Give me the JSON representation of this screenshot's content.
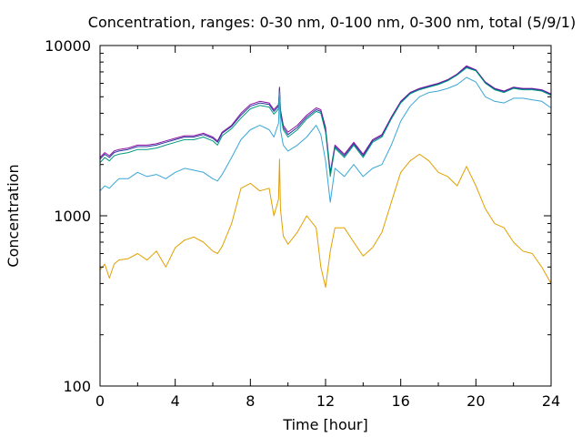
{
  "chart_data": {
    "type": "line",
    "title": "Concentration, ranges: 0-30 nm, 0-100 nm, 0-300 nm, total (5/9/1)",
    "xlabel": "Time [hour]",
    "ylabel": "Concentration",
    "xlim": [
      0,
      24
    ],
    "ylim": [
      100,
      10000
    ],
    "yscale": "log",
    "xticks": [
      0,
      4,
      8,
      12,
      16,
      20,
      24
    ],
    "xtick_labels": [
      "0",
      "4",
      "8",
      "12",
      "16",
      "20",
      "24"
    ],
    "yticks": [
      100,
      1000,
      10000
    ],
    "ytick_labels": [
      "100",
      "1000",
      "10000"
    ],
    "grid": false,
    "x": [
      0,
      0.25,
      0.5,
      0.75,
      1,
      1.5,
      2,
      2.5,
      3,
      3.5,
      4,
      4.5,
      5,
      5.5,
      6,
      6.25,
      6.5,
      7,
      7.5,
      8,
      8.5,
      9,
      9.25,
      9.5,
      9.55,
      9.6,
      9.75,
      10,
      10.5,
      11,
      11.5,
      11.75,
      12,
      12.25,
      12.5,
      13,
      13.5,
      14,
      14.5,
      15,
      15.5,
      16,
      16.5,
      17,
      17.5,
      18,
      18.5,
      19,
      19.5,
      20,
      20.5,
      21,
      21.5,
      22,
      22.5,
      23,
      23.5,
      24
    ],
    "series": [
      {
        "color": "#8c0fa0",
        "values": [
          2200,
          2350,
          2250,
          2400,
          2450,
          2500,
          2600,
          2600,
          2650,
          2750,
          2850,
          2950,
          2950,
          3050,
          2900,
          2750,
          3100,
          3400,
          4000,
          4500,
          4700,
          4600,
          4200,
          4500,
          5700,
          4200,
          3400,
          3100,
          3400,
          3900,
          4300,
          4200,
          3300,
          1800,
          2600,
          2300,
          2700,
          2300,
          2800,
          3000,
          3800,
          4700,
          5300,
          5600,
          5800,
          6000,
          6300,
          6800,
          7600,
          7200,
          6100,
          5600,
          5400,
          5700,
          5600,
          5600,
          5500,
          5200
        ]
      },
      {
        "color": "#2838a0",
        "values": [
          2150,
          2300,
          2200,
          2350,
          2400,
          2450,
          2550,
          2550,
          2600,
          2700,
          2800,
          2900,
          2900,
          3000,
          2850,
          2700,
          3050,
          3350,
          3900,
          4400,
          4600,
          4500,
          4100,
          4400,
          5600,
          4100,
          3300,
          3000,
          3300,
          3800,
          4200,
          4100,
          3200,
          1750,
          2550,
          2250,
          2650,
          2250,
          2750,
          2950,
          3750,
          4650,
          5250,
          5550,
          5750,
          5950,
          6250,
          6750,
          7500,
          7150,
          6050,
          5550,
          5350,
          5650,
          5550,
          5550,
          5450,
          5150
        ]
      },
      {
        "color": "#009a80",
        "values": [
          2050,
          2200,
          2100,
          2250,
          2300,
          2350,
          2450,
          2450,
          2500,
          2600,
          2700,
          2800,
          2800,
          2900,
          2750,
          2600,
          2950,
          3250,
          3750,
          4250,
          4450,
          4350,
          3950,
          4250,
          5400,
          3950,
          3200,
          2900,
          3200,
          3700,
          4100,
          4000,
          3100,
          1700,
          2500,
          2200,
          2600,
          2200,
          2700,
          2900,
          3700,
          4600,
          5200,
          5500,
          5700,
          5900,
          6200,
          6700,
          7400,
          7100,
          6000,
          5500,
          5300,
          5600,
          5500,
          5500,
          5400,
          5100
        ]
      },
      {
        "color": "#3aa6d4",
        "values": [
          1400,
          1500,
          1450,
          1550,
          1650,
          1650,
          1800,
          1700,
          1750,
          1650,
          1800,
          1900,
          1850,
          1800,
          1650,
          1600,
          1750,
          2200,
          2800,
          3200,
          3400,
          3200,
          2900,
          3500,
          5200,
          3200,
          2600,
          2400,
          2600,
          2900,
          3400,
          3000,
          2100,
          1200,
          1900,
          1700,
          2000,
          1700,
          1900,
          2000,
          2600,
          3600,
          4400,
          5000,
          5300,
          5400,
          5600,
          5900,
          6500,
          6100,
          5000,
          4700,
          4600,
          4900,
          4900,
          4800,
          4700,
          4300
        ]
      },
      {
        "color": "#e1a000",
        "values": [
          480,
          520,
          430,
          520,
          550,
          560,
          600,
          550,
          620,
          500,
          650,
          720,
          750,
          700,
          620,
          600,
          660,
          900,
          1450,
          1550,
          1400,
          1450,
          1000,
          1250,
          2150,
          1100,
          760,
          680,
          800,
          1000,
          850,
          500,
          380,
          620,
          850,
          850,
          700,
          580,
          650,
          800,
          1200,
          1800,
          2100,
          2300,
          2100,
          1800,
          1700,
          1500,
          1950,
          1500,
          1100,
          900,
          850,
          700,
          620,
          600,
          500,
          400
        ]
      }
    ]
  }
}
